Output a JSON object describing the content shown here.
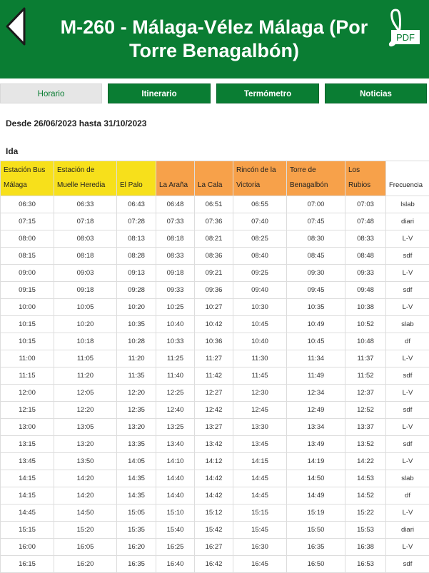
{
  "header": {
    "title": "M-260 - Málaga-Vélez Málaga (Por Torre Benagalbón)",
    "pdf_label": "PDF",
    "bg_color": "#0a7d33"
  },
  "tabs": [
    {
      "label": "Horario",
      "active": true
    },
    {
      "label": "Itinerario",
      "active": false
    },
    {
      "label": "Termómetro",
      "active": false
    },
    {
      "label": "Noticias",
      "active": false
    }
  ],
  "period": "Desde 26/06/2023 hasta 31/10/2023",
  "direction": "Ida",
  "table": {
    "columns": [
      {
        "label": "Estación Bus Málaga",
        "color": "yellow"
      },
      {
        "label": "Estación de Muelle Heredia",
        "color": "yellow"
      },
      {
        "label": "El Palo",
        "color": "yellow"
      },
      {
        "label": "La Araña",
        "color": "orange"
      },
      {
        "label": "La Cala",
        "color": "orange"
      },
      {
        "label": "Rincón de la Victoria",
        "color": "orange"
      },
      {
        "label": "Torre de Benagalbón",
        "color": "orange"
      },
      {
        "label": "Los Rubios",
        "color": "orange"
      },
      {
        "label": "Frecuencia",
        "color": "white"
      }
    ],
    "rows": [
      [
        "06:30",
        "06:33",
        "06:43",
        "06:48",
        "06:51",
        "06:55",
        "07:00",
        "07:03",
        "lslab"
      ],
      [
        "07:15",
        "07:18",
        "07:28",
        "07:33",
        "07:36",
        "07:40",
        "07:45",
        "07:48",
        "diari"
      ],
      [
        "08:00",
        "08:03",
        "08:13",
        "08:18",
        "08:21",
        "08:25",
        "08:30",
        "08:33",
        "L-V"
      ],
      [
        "08:15",
        "08:18",
        "08:28",
        "08:33",
        "08:36",
        "08:40",
        "08:45",
        "08:48",
        "sdf"
      ],
      [
        "09:00",
        "09:03",
        "09:13",
        "09:18",
        "09:21",
        "09:25",
        "09:30",
        "09:33",
        "L-V"
      ],
      [
        "09:15",
        "09:18",
        "09:28",
        "09:33",
        "09:36",
        "09:40",
        "09:45",
        "09:48",
        "sdf"
      ],
      [
        "10:00",
        "10:05",
        "10:20",
        "10:25",
        "10:27",
        "10:30",
        "10:35",
        "10:38",
        "L-V"
      ],
      [
        "10:15",
        "10:20",
        "10:35",
        "10:40",
        "10:42",
        "10:45",
        "10:49",
        "10:52",
        "slab"
      ],
      [
        "10:15",
        "10:18",
        "10:28",
        "10:33",
        "10:36",
        "10:40",
        "10:45",
        "10:48",
        "df"
      ],
      [
        "11:00",
        "11:05",
        "11:20",
        "11:25",
        "11:27",
        "11:30",
        "11:34",
        "11:37",
        "L-V"
      ],
      [
        "11:15",
        "11:20",
        "11:35",
        "11:40",
        "11:42",
        "11:45",
        "11:49",
        "11:52",
        "sdf"
      ],
      [
        "12:00",
        "12:05",
        "12:20",
        "12:25",
        "12:27",
        "12:30",
        "12:34",
        "12:37",
        "L-V"
      ],
      [
        "12:15",
        "12:20",
        "12:35",
        "12:40",
        "12:42",
        "12:45",
        "12:49",
        "12:52",
        "sdf"
      ],
      [
        "13:00",
        "13:05",
        "13:20",
        "13:25",
        "13:27",
        "13:30",
        "13:34",
        "13:37",
        "L-V"
      ],
      [
        "13:15",
        "13:20",
        "13:35",
        "13:40",
        "13:42",
        "13:45",
        "13:49",
        "13:52",
        "sdf"
      ],
      [
        "13:45",
        "13:50",
        "14:05",
        "14:10",
        "14:12",
        "14:15",
        "14:19",
        "14:22",
        "L-V"
      ],
      [
        "14:15",
        "14:20",
        "14:35",
        "14:40",
        "14:42",
        "14:45",
        "14:50",
        "14:53",
        "slab"
      ],
      [
        "14:15",
        "14:20",
        "14:35",
        "14:40",
        "14:42",
        "14:45",
        "14:49",
        "14:52",
        "df"
      ],
      [
        "14:45",
        "14:50",
        "15:05",
        "15:10",
        "15:12",
        "15:15",
        "15:19",
        "15:22",
        "L-V"
      ],
      [
        "15:15",
        "15:20",
        "15:35",
        "15:40",
        "15:42",
        "15:45",
        "15:50",
        "15:53",
        "diari"
      ],
      [
        "16:00",
        "16:05",
        "16:20",
        "16:25",
        "16:27",
        "16:30",
        "16:35",
        "16:38",
        "L-V"
      ],
      [
        "16:15",
        "16:20",
        "16:35",
        "16:40",
        "16:42",
        "16:45",
        "16:50",
        "16:53",
        "sdf"
      ]
    ]
  }
}
